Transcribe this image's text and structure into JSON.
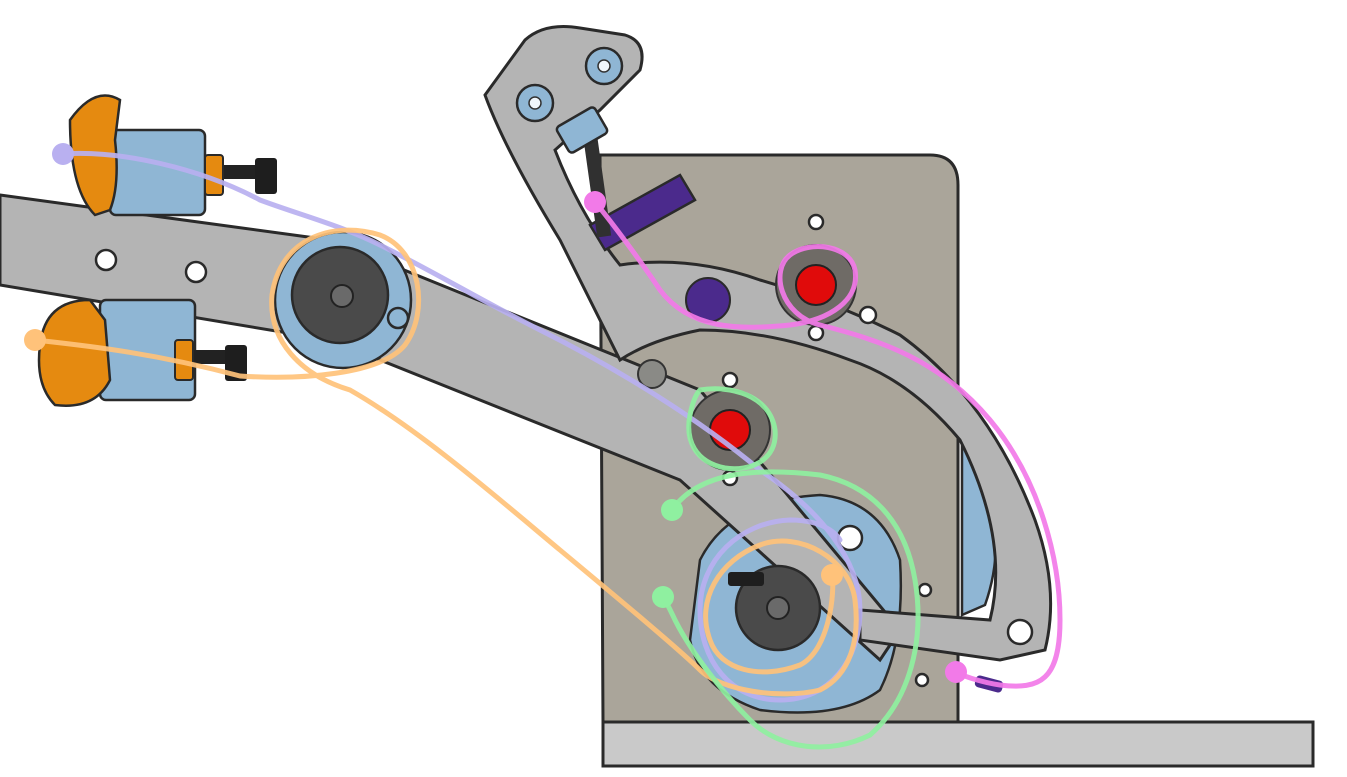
{
  "colors": {
    "plate": "#aaa59a",
    "gray": "#b4b4b4",
    "gray_light": "#c9c9c9",
    "dark": "#4a4a4a",
    "blue": "#8fb6d4",
    "orange": "#e58a10",
    "purple": "#4b2a8c",
    "red": "#e00b0b",
    "outline": "#2a2a2a",
    "ink_lavender": "#b9b0f0",
    "ink_peach": "#ffc27a",
    "ink_green": "#8ff0a0",
    "ink_pink": "#f27ae8"
  },
  "icons": {
    "wing_nut": "wing-nut-icon",
    "screw": "screw-icon",
    "shaft_collar": "shaft-collar-icon",
    "bearing": "bearing-icon",
    "knob": "red-knob-icon"
  }
}
